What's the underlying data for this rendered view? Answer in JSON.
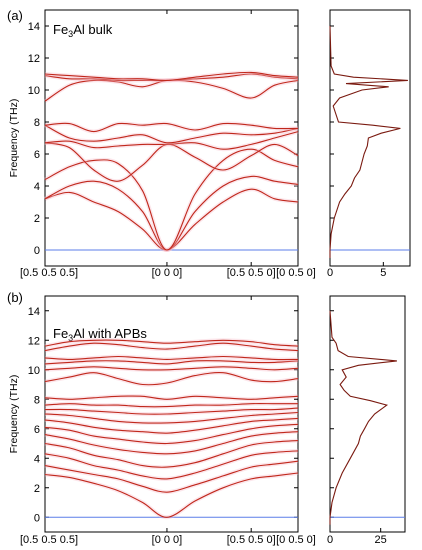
{
  "panels": [
    {
      "id": "a",
      "label": "(a)",
      "title_main": "Fe",
      "title_sub": "3",
      "title_rest": "Al bulk",
      "ylabel": "Frequency (THz)",
      "y_ticks": [
        "0",
        "2",
        "4",
        "6",
        "8",
        "10",
        "12",
        "14"
      ],
      "x_ticks": [
        "[0.5 0.5 0.5]",
        "[0 0 0]",
        "[0.5 0.5 0]",
        "[0 0.5 0]"
      ],
      "dos_ticks": [
        "0",
        "5"
      ]
    },
    {
      "id": "b",
      "label": "(b)",
      "title_main": "Fe",
      "title_sub": "3",
      "title_rest": "Al with APBs",
      "ylabel": "Frequency (THz)",
      "y_ticks": [
        "0",
        "2",
        "4",
        "6",
        "8",
        "10",
        "12",
        "14"
      ],
      "x_ticks": [
        "[0.5 0.5 0.5]",
        "[0 0 0]",
        "[0.5 0.5 0]",
        "[0 0.5 0]"
      ],
      "dos_ticks": [
        "0",
        "25"
      ]
    }
  ],
  "chart_data": [
    {
      "type": "line",
      "title": "Fe3Al bulk",
      "ylabel": "Frequency (THz)",
      "ylim": [
        -1,
        15
      ],
      "x_path_labels": [
        "[0.5 0.5 0.5]",
        "[0 0 0]",
        "[0.5 0.5 0]",
        "[0 0.5 0]"
      ],
      "x_ticks_pos": [
        0,
        1,
        1.6,
        2
      ],
      "series": [
        {
          "x": [
            0,
            0.2,
            0.4,
            0.6,
            0.8,
            1.0,
            1.2,
            1.4,
            1.6,
            1.8,
            2.0
          ],
          "y": [
            3.2,
            3.6,
            3.0,
            2.4,
            1.3,
            0,
            1.6,
            3.0,
            3.8,
            3.2,
            3.0
          ]
        },
        {
          "x": [
            0,
            0.2,
            0.4,
            0.6,
            0.8,
            1.0,
            1.2,
            1.4,
            1.6,
            1.8,
            2.0
          ],
          "y": [
            3.2,
            4.0,
            4.3,
            3.8,
            2.4,
            0,
            2.4,
            4.0,
            4.6,
            4.3,
            4.1
          ]
        },
        {
          "x": [
            0,
            0.2,
            0.4,
            0.6,
            0.8,
            1.0,
            1.2,
            1.4,
            1.6,
            1.8,
            2.0
          ],
          "y": [
            4.4,
            5.2,
            5.6,
            5.4,
            3.7,
            0,
            3.5,
            5.6,
            6.3,
            5.6,
            5.2
          ]
        },
        {
          "x": [
            0,
            0.2,
            0.4,
            0.6,
            0.8,
            1.0,
            1.2,
            1.4,
            1.6,
            1.8,
            2.0
          ],
          "y": [
            6.7,
            6.4,
            5.0,
            4.3,
            5.3,
            6.6,
            5.8,
            5.0,
            5.9,
            6.6,
            5.9
          ]
        },
        {
          "x": [
            0,
            0.2,
            0.4,
            0.6,
            0.8,
            1.0,
            1.2,
            1.4,
            1.6,
            1.8,
            2.0
          ],
          "y": [
            6.7,
            6.8,
            6.4,
            6.5,
            6.6,
            6.6,
            6.7,
            6.3,
            6.6,
            7.0,
            7.4
          ]
        },
        {
          "x": [
            0,
            0.2,
            0.4,
            0.6,
            0.8,
            1.0,
            1.2,
            1.4,
            1.6,
            1.8,
            2.0
          ],
          "y": [
            7.8,
            7.0,
            6.8,
            7.0,
            7.2,
            6.7,
            7.0,
            7.3,
            7.2,
            7.3,
            7.6
          ]
        },
        {
          "x": [
            0,
            0.2,
            0.4,
            0.6,
            0.8,
            1.0,
            1.2,
            1.4,
            1.6,
            1.8,
            2.0
          ],
          "y": [
            7.8,
            7.9,
            7.4,
            7.9,
            7.8,
            7.9,
            7.5,
            7.9,
            7.8,
            7.6,
            7.6
          ]
        },
        {
          "x": [
            0,
            0.2,
            0.4,
            0.6,
            0.8,
            1.0,
            1.2,
            1.4,
            1.6,
            1.8,
            2.0
          ],
          "y": [
            9.3,
            10.3,
            10.6,
            10.5,
            10.2,
            10.6,
            10.5,
            10.1,
            9.5,
            10.3,
            10.6
          ]
        },
        {
          "x": [
            0,
            0.2,
            0.4,
            0.6,
            0.8,
            1.0,
            1.2,
            1.4,
            1.6,
            1.8,
            2.0
          ],
          "y": [
            10.9,
            10.7,
            10.7,
            10.6,
            10.6,
            10.6,
            10.7,
            10.8,
            11.0,
            10.8,
            10.7
          ]
        },
        {
          "x": [
            0,
            0.2,
            0.4,
            0.6,
            0.8,
            1.0,
            1.2,
            1.4,
            1.6,
            1.8,
            2.0
          ],
          "y": [
            11.0,
            10.9,
            10.8,
            10.7,
            10.7,
            10.6,
            10.8,
            11.0,
            11.1,
            10.9,
            10.8
          ]
        }
      ],
      "dos": {
        "xlabel": "",
        "xlim": [
          0,
          7.5
        ],
        "x_ticks": [
          0,
          5
        ],
        "freq": [
          -0.5,
          0,
          1,
          2,
          3,
          3.5,
          4,
          4.5,
          5,
          5.5,
          6,
          6.5,
          7,
          7.3,
          7.6,
          7.8,
          8,
          9,
          9.5,
          10,
          10.2,
          10.4,
          10.6,
          10.8,
          11,
          11.5,
          14
        ],
        "dos": [
          0,
          0,
          0.1,
          0.4,
          0.9,
          1.4,
          2.0,
          2.3,
          2.8,
          3.0,
          3.2,
          3.5,
          3.6,
          4.8,
          6.6,
          4.0,
          0.8,
          0.3,
          0.9,
          3.0,
          5.5,
          1.5,
          7.3,
          2.2,
          0.4,
          0.1,
          0
        ]
      }
    },
    {
      "type": "line",
      "title": "Fe3Al with APBs",
      "ylabel": "Frequency (THz)",
      "ylim": [
        -1,
        15
      ],
      "x_path_labels": [
        "[0.5 0.5 0.5]",
        "[0 0 0]",
        "[0.5 0.5 0]",
        "[0 0.5 0]"
      ],
      "x_ticks_pos": [
        0,
        1,
        1.6,
        2
      ],
      "series": [
        {
          "x": [
            0,
            0.2,
            0.4,
            0.6,
            0.8,
            1.0,
            1.2,
            1.4,
            1.6,
            1.8,
            2.0
          ],
          "y": [
            2.9,
            2.7,
            2.3,
            1.8,
            1.0,
            0,
            1.1,
            2.0,
            2.6,
            2.8,
            3.0
          ]
        },
        {
          "x": [
            0,
            0.2,
            0.4,
            0.6,
            0.8,
            1.0,
            1.2,
            1.4,
            1.6,
            1.8,
            2.0
          ],
          "y": [
            3.5,
            3.2,
            2.9,
            2.6,
            2.1,
            1.7,
            2.2,
            2.8,
            3.4,
            3.6,
            3.8
          ]
        },
        {
          "x": [
            0,
            0.2,
            0.4,
            0.6,
            0.8,
            1.0,
            1.2,
            1.4,
            1.6,
            1.8,
            2.0
          ],
          "y": [
            4.3,
            4.0,
            3.5,
            3.2,
            2.8,
            2.6,
            3.0,
            3.6,
            4.2,
            4.4,
            4.5
          ]
        },
        {
          "x": [
            0,
            0.2,
            0.4,
            0.6,
            0.8,
            1.0,
            1.2,
            1.4,
            1.6,
            1.8,
            2.0
          ],
          "y": [
            5.0,
            4.7,
            4.2,
            3.9,
            3.5,
            3.4,
            3.7,
            4.3,
            4.9,
            5.1,
            5.2
          ]
        },
        {
          "x": [
            0,
            0.2,
            0.4,
            0.6,
            0.8,
            1.0,
            1.2,
            1.4,
            1.6,
            1.8,
            2.0
          ],
          "y": [
            5.6,
            5.3,
            4.9,
            4.6,
            4.4,
            4.3,
            4.5,
            5.0,
            5.5,
            5.7,
            5.8
          ]
        },
        {
          "x": [
            0,
            0.2,
            0.4,
            0.6,
            0.8,
            1.0,
            1.2,
            1.4,
            1.6,
            1.8,
            2.0
          ],
          "y": [
            6.1,
            5.9,
            5.5,
            5.3,
            5.1,
            5.0,
            5.2,
            5.6,
            6.0,
            6.2,
            6.3
          ]
        },
        {
          "x": [
            0,
            0.2,
            0.4,
            0.6,
            0.8,
            1.0,
            1.2,
            1.4,
            1.6,
            1.8,
            2.0
          ],
          "y": [
            6.6,
            6.4,
            6.1,
            5.9,
            5.8,
            5.7,
            5.9,
            6.2,
            6.5,
            6.6,
            6.7
          ]
        },
        {
          "x": [
            0,
            0.2,
            0.4,
            0.6,
            0.8,
            1.0,
            1.2,
            1.4,
            1.6,
            1.8,
            2.0
          ],
          "y": [
            7.0,
            6.9,
            6.7,
            6.5,
            6.4,
            6.4,
            6.5,
            6.7,
            6.9,
            7.0,
            7.1
          ]
        },
        {
          "x": [
            0,
            0.2,
            0.4,
            0.6,
            0.8,
            1.0,
            1.2,
            1.4,
            1.6,
            1.8,
            2.0
          ],
          "y": [
            7.3,
            7.3,
            7.2,
            7.1,
            7.0,
            7.0,
            7.1,
            7.2,
            7.3,
            7.3,
            7.4
          ]
        },
        {
          "x": [
            0,
            0.2,
            0.4,
            0.6,
            0.8,
            1.0,
            1.2,
            1.4,
            1.6,
            1.8,
            2.0
          ],
          "y": [
            7.6,
            7.7,
            7.6,
            7.6,
            7.5,
            7.5,
            7.6,
            7.6,
            7.7,
            7.7,
            7.7
          ]
        },
        {
          "x": [
            0,
            0.2,
            0.4,
            0.6,
            0.8,
            1.0,
            1.2,
            1.4,
            1.6,
            1.8,
            2.0
          ],
          "y": [
            8.1,
            8.0,
            8.1,
            8.2,
            8.2,
            8.0,
            8.2,
            8.1,
            8.0,
            8.1,
            8.2
          ]
        },
        {
          "x": [
            0,
            0.2,
            0.4,
            0.6,
            0.8,
            1.0,
            1.2,
            1.4,
            1.6,
            1.8,
            2.0
          ],
          "y": [
            9.2,
            9.5,
            9.8,
            9.4,
            9.0,
            9.1,
            9.6,
            9.8,
            9.3,
            9.2,
            9.4
          ]
        },
        {
          "x": [
            0,
            0.2,
            0.4,
            0.6,
            0.8,
            1.0,
            1.2,
            1.4,
            1.6,
            1.8,
            2.0
          ],
          "y": [
            10.0,
            10.1,
            10.2,
            10.1,
            10.0,
            10.0,
            10.1,
            10.2,
            10.1,
            10.0,
            10.1
          ]
        },
        {
          "x": [
            0,
            0.2,
            0.4,
            0.6,
            0.8,
            1.0,
            1.2,
            1.4,
            1.6,
            1.8,
            2.0
          ],
          "y": [
            10.4,
            10.5,
            10.6,
            10.6,
            10.5,
            10.4,
            10.6,
            10.6,
            10.5,
            10.5,
            10.6
          ]
        },
        {
          "x": [
            0,
            0.2,
            0.4,
            0.6,
            0.8,
            1.0,
            1.2,
            1.4,
            1.6,
            1.8,
            2.0
          ],
          "y": [
            10.8,
            10.7,
            10.8,
            10.9,
            10.8,
            10.7,
            10.8,
            10.9,
            10.8,
            10.7,
            10.7
          ]
        },
        {
          "x": [
            0,
            0.2,
            0.4,
            0.6,
            0.8,
            1.0,
            1.2,
            1.4,
            1.6,
            1.8,
            2.0
          ],
          "y": [
            11.3,
            11.6,
            11.8,
            11.7,
            11.5,
            11.4,
            11.6,
            11.8,
            11.6,
            11.4,
            11.3
          ]
        },
        {
          "x": [
            0,
            0.2,
            0.4,
            0.6,
            0.8,
            1.0,
            1.2,
            1.4,
            1.6,
            1.8,
            2.0
          ],
          "y": [
            11.6,
            11.9,
            12.0,
            12.0,
            11.9,
            11.8,
            11.9,
            12.0,
            11.9,
            11.7,
            11.6
          ]
        }
      ],
      "dos": {
        "xlabel": "",
        "xlim": [
          0,
          37
        ],
        "x_ticks": [
          0,
          25
        ],
        "freq": [
          -0.5,
          0,
          1,
          2,
          3,
          4,
          5,
          5.5,
          6,
          6.5,
          7,
          7.3,
          7.6,
          7.9,
          8.2,
          8.6,
          9,
          9.5,
          10,
          10.3,
          10.6,
          10.9,
          11.3,
          11.8,
          12.2,
          14
        ],
        "dos": [
          0,
          0,
          1,
          3,
          6,
          10,
          14,
          15,
          17,
          19,
          22,
          25,
          28,
          20,
          10,
          7,
          5,
          8,
          6,
          14,
          33,
          9,
          4,
          3,
          1,
          0
        ]
      }
    }
  ]
}
